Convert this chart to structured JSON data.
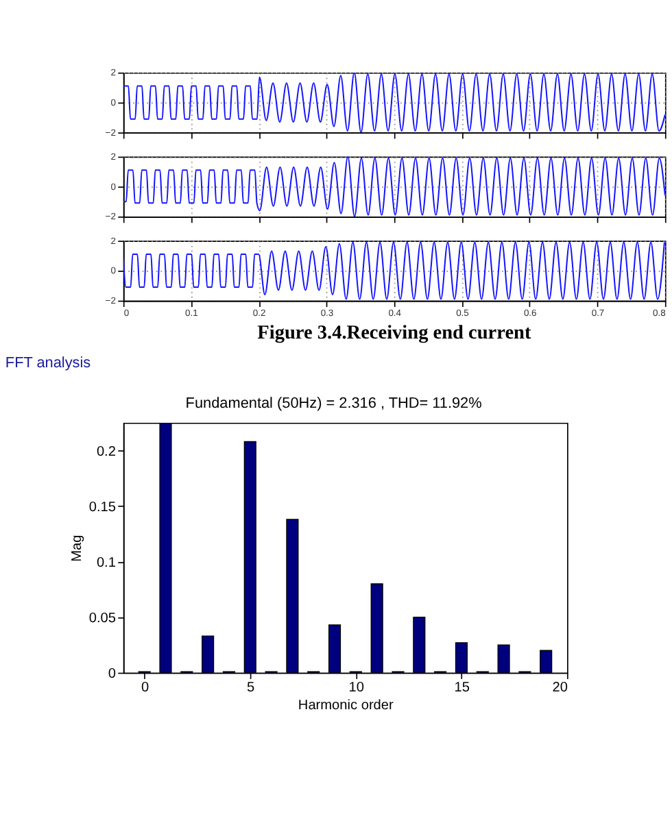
{
  "chart_data": [
    {
      "type": "line",
      "xlim": [
        0,
        0.8
      ],
      "ylim": [
        -2,
        2
      ],
      "xticks": [
        0,
        0.1,
        0.2,
        0.3,
        0.4,
        0.5,
        0.6,
        0.7,
        0.8
      ],
      "yticks": [
        -2,
        0,
        2
      ],
      "grid": true,
      "tick_labels": "y",
      "marker": "none",
      "line_style": "solid",
      "series": [
        {
          "color": "#1414ff",
          "x": [
            0.0005,
            0.0075,
            0.0105,
            0.0175,
            0.0205,
            0.0275,
            0.0305,
            0.0375,
            0.0405,
            0.0475,
            0.0505,
            0.0575,
            0.0605,
            0.0675,
            0.0705,
            0.0775,
            0.0805,
            0.0875,
            0.0905,
            0.0975,
            0.1005,
            0.1075,
            0.1105,
            0.1175,
            0.1205,
            0.1275,
            0.1305,
            0.1375,
            0.1405,
            0.1475,
            0.1505,
            0.1575,
            0.1605,
            0.1675,
            0.1705,
            0.1775,
            0.1805,
            0.1875,
            0.1905,
            0.1975,
            0.201,
            0.211,
            0.221,
            0.231,
            0.241,
            0.251,
            0.261,
            0.271,
            0.281,
            0.291,
            0.301,
            0.311,
            0.321,
            0.331,
            0.341,
            0.351,
            0.361,
            0.371,
            0.381,
            0.391,
            0.401,
            0.411,
            0.421,
            0.431,
            0.441,
            0.451,
            0.461,
            0.471,
            0.481,
            0.491,
            0.501,
            0.511,
            0.521,
            0.531,
            0.541,
            0.551,
            0.561,
            0.571,
            0.581,
            0.591,
            0.601,
            0.611,
            0.621,
            0.631,
            0.641,
            0.651,
            0.661,
            0.671,
            0.681,
            0.691,
            0.701,
            0.711,
            0.721,
            0.731,
            0.741,
            0.751,
            0.761,
            0.771,
            0.781,
            0.791,
            0.8
          ],
          "values": [
            1.1,
            1.1,
            -1.1,
            -1.1,
            1.1,
            1.1,
            -1.1,
            -1.1,
            1.1,
            1.1,
            -1.1,
            -1.1,
            1.1,
            1.1,
            -1.1,
            -1.1,
            1.1,
            1.1,
            -1.1,
            -1.1,
            1.1,
            1.1,
            -1.1,
            -1.1,
            1.1,
            1.1,
            -1.1,
            -1.1,
            1.1,
            1.1,
            -1.1,
            -1.1,
            1.1,
            1.1,
            -1.1,
            -1.1,
            1.1,
            1.1,
            -1.1,
            -1.1,
            1.7,
            -1.2,
            1.3,
            -1.3,
            1.3,
            -1.3,
            1.3,
            -1.3,
            1.3,
            -1.3,
            1.2,
            -1.6,
            1.8,
            -1.9,
            2.0,
            -2.0,
            1.9,
            -1.9,
            1.9,
            -1.9,
            1.9,
            -1.9,
            1.9,
            -1.9,
            1.9,
            -1.9,
            1.9,
            -1.9,
            1.9,
            -1.9,
            1.9,
            -1.9,
            1.9,
            -1.9,
            1.9,
            -1.9,
            1.9,
            -1.9,
            1.9,
            -1.9,
            1.9,
            -1.9,
            1.9,
            -1.9,
            1.9,
            -1.9,
            1.9,
            -1.9,
            1.9,
            -1.9,
            1.9,
            -1.9,
            1.9,
            -1.9,
            1.9,
            -1.9,
            1.9,
            -1.9,
            1.9,
            -1.9,
            -0.8
          ]
        }
      ]
    },
    {
      "type": "line",
      "xlim": [
        0,
        0.8
      ],
      "ylim": [
        -2,
        2
      ],
      "xticks": [
        0,
        0.1,
        0.2,
        0.3,
        0.4,
        0.5,
        0.6,
        0.7,
        0.8
      ],
      "yticks": [
        -2,
        0,
        2
      ],
      "grid": true,
      "tick_labels": "y",
      "marker": "none",
      "line_style": "solid",
      "series": [
        {
          "color": "#1414ff",
          "x": [
            0,
            0.0042,
            0.0072,
            0.0142,
            0.0172,
            0.0242,
            0.0272,
            0.0342,
            0.0372,
            0.0442,
            0.0472,
            0.0542,
            0.0572,
            0.0642,
            0.0672,
            0.0742,
            0.0772,
            0.0842,
            0.0872,
            0.0942,
            0.0972,
            0.1042,
            0.1072,
            0.1142,
            0.1172,
            0.1242,
            0.1272,
            0.1342,
            0.1372,
            0.1442,
            0.1472,
            0.1542,
            0.1572,
            0.1642,
            0.1672,
            0.1742,
            0.1772,
            0.1842,
            0.1872,
            0.1942,
            0.1972,
            0.2015,
            0.2115,
            0.2215,
            0.2315,
            0.2415,
            0.2515,
            0.2615,
            0.2715,
            0.2815,
            0.2915,
            0.3015,
            0.3115,
            0.3215,
            0.3315,
            0.3415,
            0.3515,
            0.3615,
            0.3715,
            0.3815,
            0.3915,
            0.4015,
            0.4115,
            0.4215,
            0.4315,
            0.4415,
            0.4515,
            0.4615,
            0.4715,
            0.4815,
            0.4915,
            0.5015,
            0.5115,
            0.5215,
            0.5315,
            0.5415,
            0.5515,
            0.5615,
            0.5715,
            0.5815,
            0.5915,
            0.6015,
            0.6115,
            0.6215,
            0.6315,
            0.6415,
            0.6515,
            0.6615,
            0.6715,
            0.6815,
            0.6915,
            0.7015,
            0.7115,
            0.7215,
            0.7315,
            0.7415,
            0.7515,
            0.7615,
            0.7715,
            0.7815,
            0.7915,
            0.8
          ],
          "values": [
            -1.0,
            -1.0,
            1.1,
            1.1,
            -1.1,
            -1.1,
            1.1,
            1.1,
            -1.1,
            -1.1,
            1.1,
            1.1,
            -1.1,
            -1.1,
            1.1,
            1.1,
            -1.1,
            -1.1,
            1.1,
            1.1,
            -1.1,
            -1.1,
            1.1,
            1.1,
            -1.1,
            -1.1,
            1.1,
            1.1,
            -1.1,
            -1.1,
            1.1,
            1.1,
            -1.1,
            -1.1,
            1.1,
            1.1,
            -1.1,
            -1.1,
            1.1,
            1.1,
            -1.1,
            -1.6,
            1.3,
            -1.3,
            1.3,
            -1.3,
            1.3,
            -1.3,
            1.3,
            -1.3,
            1.3,
            -1.5,
            1.6,
            -1.8,
            2.0,
            -2.0,
            1.9,
            -1.9,
            1.9,
            -1.9,
            1.9,
            -1.9,
            1.9,
            -1.9,
            1.9,
            -1.9,
            1.9,
            -1.9,
            1.9,
            -1.9,
            1.9,
            -1.9,
            1.9,
            -1.9,
            1.9,
            -1.9,
            1.9,
            -1.9,
            1.9,
            -1.9,
            1.9,
            -1.9,
            1.9,
            -1.9,
            1.9,
            -1.9,
            1.9,
            -1.9,
            1.9,
            -1.9,
            1.9,
            -1.9,
            1.9,
            -1.9,
            1.9,
            -1.9,
            1.9,
            -1.9,
            1.9,
            -1.9,
            1.9,
            -0.6
          ]
        }
      ]
    },
    {
      "type": "line",
      "xlim": [
        0,
        0.8
      ],
      "ylim": [
        -2,
        2
      ],
      "xticks": [
        0,
        0.1,
        0.2,
        0.3,
        0.4,
        0.5,
        0.6,
        0.7,
        0.8
      ],
      "yticks": [
        -2,
        0,
        2
      ],
      "grid": true,
      "marker": "none",
      "line_style": "solid",
      "annotations": [
        "Figure 3.4.Receiving end current"
      ],
      "series": [
        {
          "color": "#1414ff",
          "x": [
            0,
            0.0038,
            0.0108,
            0.0138,
            0.0208,
            0.0238,
            0.0308,
            0.0338,
            0.0408,
            0.0438,
            0.0508,
            0.0538,
            0.0608,
            0.0638,
            0.0708,
            0.0738,
            0.0808,
            0.0838,
            0.0908,
            0.0938,
            0.1008,
            0.1038,
            0.1108,
            0.1138,
            0.1208,
            0.1238,
            0.1308,
            0.1338,
            0.1408,
            0.1438,
            0.1508,
            0.1538,
            0.1608,
            0.1638,
            0.1708,
            0.1738,
            0.1808,
            0.1838,
            0.1908,
            0.1938,
            0.1998,
            0.209,
            0.219,
            0.229,
            0.239,
            0.249,
            0.259,
            0.269,
            0.279,
            0.289,
            0.299,
            0.309,
            0.319,
            0.329,
            0.339,
            0.349,
            0.359,
            0.369,
            0.379,
            0.389,
            0.399,
            0.409,
            0.419,
            0.429,
            0.439,
            0.449,
            0.459,
            0.469,
            0.479,
            0.489,
            0.499,
            0.509,
            0.519,
            0.529,
            0.539,
            0.549,
            0.559,
            0.569,
            0.579,
            0.589,
            0.599,
            0.609,
            0.619,
            0.629,
            0.639,
            0.649,
            0.659,
            0.669,
            0.679,
            0.689,
            0.699,
            0.709,
            0.719,
            0.729,
            0.739,
            0.749,
            0.759,
            0.769,
            0.779,
            0.789,
            0.799
          ],
          "values": [
            0.8,
            -1.1,
            -1.1,
            1.1,
            1.1,
            -1.1,
            -1.1,
            1.1,
            1.1,
            -1.1,
            -1.1,
            1.1,
            1.1,
            -1.1,
            -1.1,
            1.1,
            1.1,
            -1.1,
            -1.1,
            1.1,
            1.1,
            -1.1,
            -1.1,
            1.1,
            1.1,
            -1.1,
            -1.1,
            1.1,
            1.1,
            -1.1,
            -1.1,
            1.1,
            1.1,
            -1.1,
            -1.1,
            1.1,
            1.1,
            -1.1,
            -1.1,
            1.1,
            1.1,
            -1.6,
            1.3,
            -1.3,
            1.3,
            -1.3,
            1.3,
            -1.3,
            1.3,
            -1.3,
            1.6,
            -1.6,
            1.8,
            -1.9,
            1.9,
            -1.9,
            1.9,
            -1.9,
            1.9,
            -1.9,
            1.9,
            -1.9,
            1.9,
            -1.9,
            1.9,
            -1.9,
            1.9,
            -1.9,
            1.9,
            -1.9,
            1.9,
            -1.9,
            1.9,
            -1.9,
            1.9,
            -1.9,
            1.9,
            -1.9,
            1.9,
            -1.9,
            1.9,
            -1.9,
            1.9,
            -1.9,
            1.9,
            -1.9,
            1.9,
            -1.9,
            1.9,
            -1.9,
            1.9,
            -1.9,
            1.9,
            -1.9,
            1.9,
            -1.9,
            1.9,
            -1.9,
            1.9,
            -1.9,
            1.9
          ]
        }
      ]
    },
    {
      "type": "bar",
      "title": "FFT analysis",
      "subtitle": "Fundamental (50Hz) = 2.316 , THD= 11.92%",
      "xlabel": "Harmonic order",
      "ylabel": "Mag",
      "x": [
        0,
        1,
        2,
        3,
        4,
        5,
        6,
        7,
        8,
        9,
        10,
        11,
        12,
        13,
        14,
        15,
        16,
        17,
        18,
        19
      ],
      "values": [
        0.001,
        0.225,
        0.001,
        0.033,
        0.001,
        0.208,
        0.001,
        0.138,
        0.001,
        0.043,
        0.001,
        0.08,
        0.001,
        0.05,
        0.001,
        0.027,
        0.001,
        0.025,
        0.001,
        0.02
      ],
      "color": "#00007f",
      "xlim": [
        -1,
        20
      ],
      "ylim": [
        0,
        0.225
      ],
      "xticks": [
        0,
        5,
        10,
        15,
        20
      ],
      "yticks": [
        0,
        0.05,
        0.1,
        0.15,
        0.2
      ],
      "grid": false
    }
  ]
}
